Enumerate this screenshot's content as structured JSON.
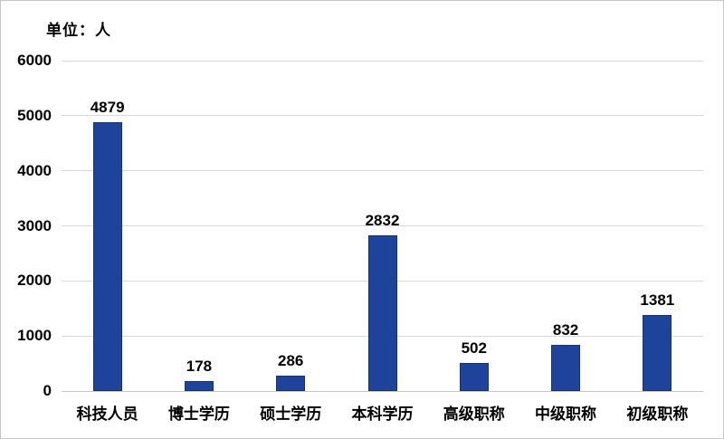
{
  "chart_data": {
    "type": "bar",
    "unit_label": "单位：人",
    "categories": [
      "科技人员",
      "博士学历",
      "硕士学历",
      "本科学历",
      "高级职称",
      "中级职称",
      "初级职称"
    ],
    "values": [
      4879,
      178,
      286,
      2832,
      502,
      832,
      1381
    ],
    "yticks": [
      0,
      1000,
      2000,
      3000,
      4000,
      5000,
      6000
    ],
    "ylim": [
      0,
      6000
    ],
    "grid": true,
    "legend": "none",
    "data_labels": true,
    "colors": {
      "bar": "#1e439b",
      "bar_border": "#17336f",
      "gridline": "#d8d8d8",
      "text": "#000000",
      "background": "#ffffff"
    }
  }
}
